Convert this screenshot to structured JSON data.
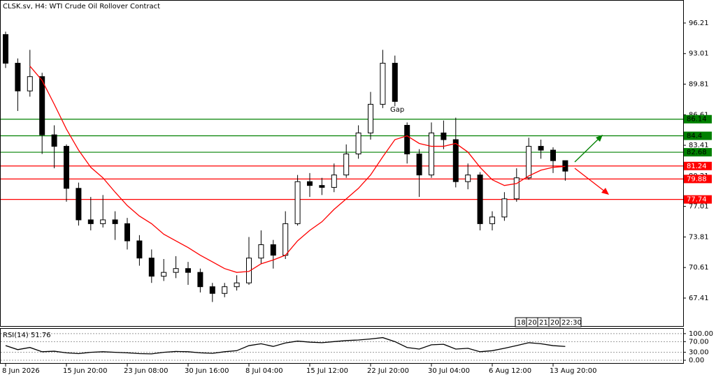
{
  "chart_data": [
    {
      "type": "candlestick",
      "title": "CLSK.sv, H4:  WTI Crude Oil Rollover Contract",
      "categories": [
        "8 Jun 2026",
        null,
        null,
        null,
        null,
        "15 Jun 20:00",
        null,
        null,
        null,
        null,
        "23 Jun 08:00",
        null,
        null,
        null,
        null,
        "30 Jun 16:00",
        null,
        null,
        null,
        null,
        "8 Jul 04:00",
        null,
        null,
        null,
        null,
        "15 Jul 12:00",
        null,
        null,
        null,
        null,
        "22 Jul 20:00",
        null,
        null,
        null,
        null,
        "30 Jul 04:00",
        null,
        null,
        null,
        null,
        "6 Aug 12:00",
        null,
        null,
        null,
        null,
        "13 Aug 20:00",
        null
      ],
      "open": [
        95.0,
        92.0,
        89.1,
        90.6,
        84.5,
        83.3,
        78.9,
        75.6,
        75.2,
        75.6,
        75.2,
        73.4,
        71.6,
        69.7,
        70.1,
        70.5,
        70.1,
        68.6,
        67.9,
        68.6,
        69.0,
        71.6,
        73.0,
        71.9,
        75.2,
        79.6,
        79.2,
        79.0,
        80.3,
        82.5,
        84.7,
        87.7,
        92.0,
        85.5,
        82.5,
        80.3,
        84.7,
        84.0,
        79.6,
        80.3,
        75.2,
        75.9,
        77.8,
        80.0,
        83.3,
        82.9,
        81.8
      ],
      "high": [
        95.3,
        92.5,
        93.4,
        91.0,
        85.5,
        83.5,
        79.5,
        78.0,
        78.2,
        76.5,
        75.8,
        74.0,
        72.5,
        71.5,
        71.8,
        71.2,
        70.5,
        69.0,
        69.0,
        69.8,
        73.8,
        74.5,
        73.5,
        76.5,
        80.3,
        80.5,
        80.0,
        81.5,
        83.5,
        85.5,
        89.0,
        93.4,
        92.8,
        85.8,
        83.0,
        85.8,
        86.0,
        86.3,
        81.5,
        80.6,
        76.5,
        78.5,
        81.0,
        84.2,
        84.0,
        83.2,
        81.8
      ],
      "low": [
        91.5,
        87.0,
        88.5,
        82.5,
        81.0,
        77.5,
        75.0,
        74.5,
        74.8,
        73.5,
        72.5,
        70.8,
        69.0,
        69.2,
        69.5,
        68.8,
        68.0,
        67.0,
        67.5,
        68.2,
        68.8,
        71.0,
        70.5,
        71.5,
        75.0,
        78.0,
        78.2,
        78.5,
        80.0,
        82.0,
        84.0,
        87.3,
        87.5,
        81.5,
        78.0,
        80.0,
        83.0,
        79.0,
        78.8,
        74.5,
        74.5,
        75.5,
        77.5,
        79.8,
        82.0,
        80.5,
        79.7
      ],
      "close": [
        92.0,
        89.1,
        90.6,
        84.5,
        83.3,
        78.9,
        75.6,
        75.2,
        75.6,
        75.2,
        73.4,
        71.6,
        69.7,
        70.1,
        70.5,
        70.1,
        68.6,
        67.9,
        68.6,
        69.0,
        71.6,
        73.0,
        71.9,
        75.2,
        79.6,
        79.2,
        79.0,
        80.3,
        82.5,
        84.7,
        87.7,
        92.0,
        88.0,
        82.5,
        80.3,
        84.7,
        84.0,
        79.6,
        80.3,
        75.2,
        75.9,
        77.8,
        80.0,
        83.3,
        82.9,
        81.8,
        80.7
      ],
      "ma_color": "#ff0000",
      "ma_values": [
        null,
        null,
        91.7,
        90.2,
        87.7,
        85.1,
        82.9,
        81.1,
        80.0,
        78.5,
        77.1,
        76.0,
        75.2,
        74.1,
        73.4,
        72.7,
        71.9,
        71.2,
        70.5,
        70.1,
        70.2,
        71.0,
        71.4,
        71.9,
        73.4,
        74.5,
        75.4,
        76.7,
        77.8,
        78.9,
        80.3,
        82.2,
        84.0,
        84.4,
        83.6,
        83.3,
        83.3,
        83.6,
        82.7,
        81.1,
        79.8,
        79.2,
        79.4,
        80.2,
        80.8,
        81.1,
        81.2
      ],
      "levels": [
        {
          "value": 86.14,
          "color": "#008000",
          "text_color": "#000000"
        },
        {
          "value": 84.4,
          "color": "#008000",
          "text_color": "#000000"
        },
        {
          "value": 82.68,
          "color": "#008000",
          "text_color": "#000000"
        },
        {
          "value": 81.24,
          "color": "#ff0000",
          "text_color": "#ffffff"
        },
        {
          "value": 79.88,
          "color": "#ff0000",
          "text_color": "#ffffff"
        },
        {
          "value": 77.74,
          "color": "#ff0000",
          "text_color": "#ffffff"
        }
      ],
      "annotation": "Gap",
      "time_labels": [
        "18:",
        "20",
        "21",
        "20",
        "22:30"
      ],
      "ylim": [
        64.41,
        98.62
      ],
      "yticks": [
        96.21,
        93.01,
        89.81,
        86.61,
        83.41,
        80.21,
        77.01,
        73.81,
        70.61,
        67.41
      ]
    },
    {
      "type": "line",
      "title": "RSI(14) 51.76",
      "color": "#000000",
      "values": [
        55,
        40,
        48,
        32,
        34,
        28,
        25,
        30,
        32,
        30,
        28,
        25,
        24,
        30,
        33,
        32,
        28,
        26,
        32,
        36,
        55,
        62,
        52,
        65,
        72,
        68,
        66,
        70,
        74,
        76,
        80,
        85,
        70,
        48,
        42,
        58,
        60,
        42,
        45,
        32,
        36,
        45,
        55,
        66,
        62,
        55,
        51.76
      ],
      "ylim": [
        -13,
        118
      ],
      "yticks": [
        {
          "value": 100,
          "label": "100.00"
        },
        {
          "value": 70,
          "label": "70.00"
        },
        {
          "value": 30,
          "label": "30.00"
        },
        {
          "value": 0,
          "label": "0.00"
        }
      ]
    }
  ]
}
